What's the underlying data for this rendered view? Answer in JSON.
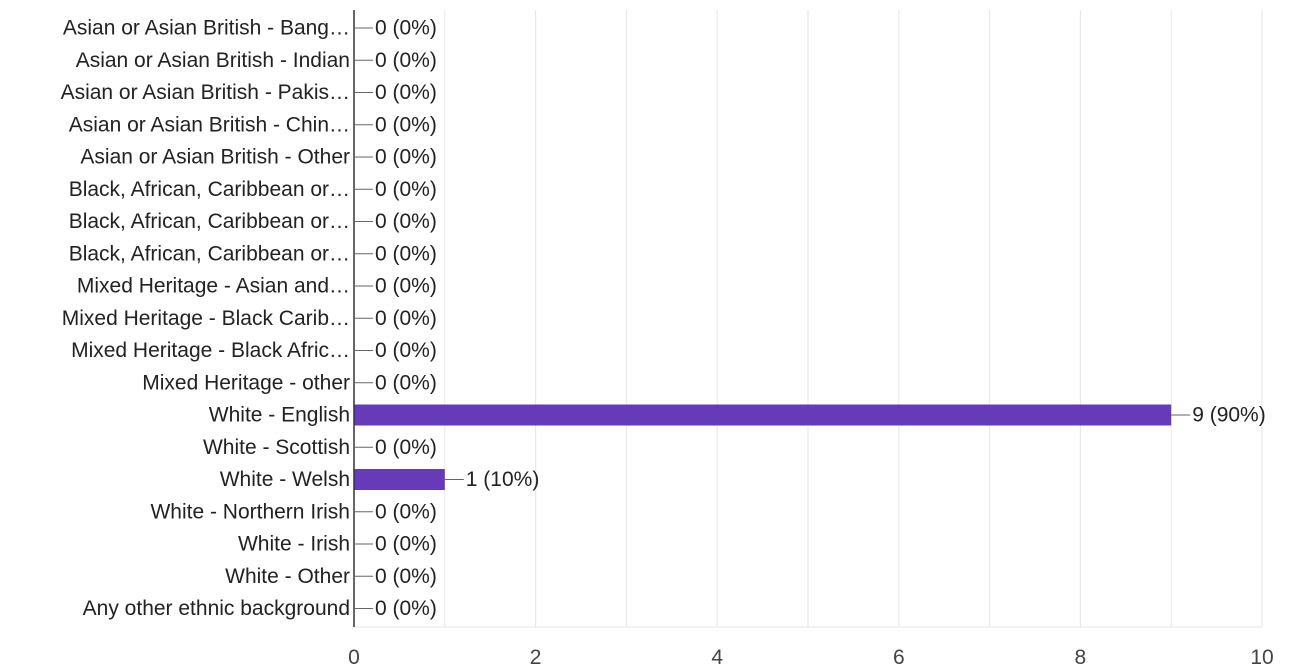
{
  "chart_data": {
    "type": "bar",
    "orientation": "horizontal",
    "categories": [
      "Asian or Asian British - Bang…",
      "Asian or Asian British - Indian",
      "Asian or Asian British - Pakis…",
      "Asian or Asian British - Chin…",
      "Asian or Asian British - Other",
      "Black, African, Caribbean or…",
      "Black, African, Caribbean or…",
      "Black, African, Caribbean or…",
      "Mixed Heritage - Asian and…",
      "Mixed Heritage - Black Carib…",
      "Mixed Heritage - Black Afric…",
      "Mixed Heritage - other",
      "White - English",
      "White - Scottish",
      "White - Welsh",
      "White - Northern Irish",
      "White - Irish",
      "White - Other",
      "Any other ethnic background"
    ],
    "values": [
      0,
      0,
      0,
      0,
      0,
      0,
      0,
      0,
      0,
      0,
      0,
      0,
      9,
      0,
      1,
      0,
      0,
      0,
      0
    ],
    "data_labels": [
      "0 (0%)",
      "0 (0%)",
      "0 (0%)",
      "0 (0%)",
      "0 (0%)",
      "0 (0%)",
      "0 (0%)",
      "0 (0%)",
      "0 (0%)",
      "0 (0%)",
      "0 (0%)",
      "0 (0%)",
      "9 (90%)",
      "0 (0%)",
      "1 (10%)",
      "0 (0%)",
      "0 (0%)",
      "0 (0%)",
      "0 (0%)"
    ],
    "xlim": [
      0,
      10
    ],
    "xticks": [
      0,
      2,
      4,
      6,
      8,
      10
    ],
    "xtick_labels": [
      "0",
      "2",
      "4",
      "6",
      "8",
      "10"
    ],
    "grid": true,
    "legend": "none",
    "title": "",
    "xlabel": "",
    "ylabel": "",
    "colors": {
      "bar": "#673ab7",
      "grid": "#e6e6e6",
      "axis": "#333333",
      "leader": "#666666",
      "text": "#222222"
    }
  }
}
